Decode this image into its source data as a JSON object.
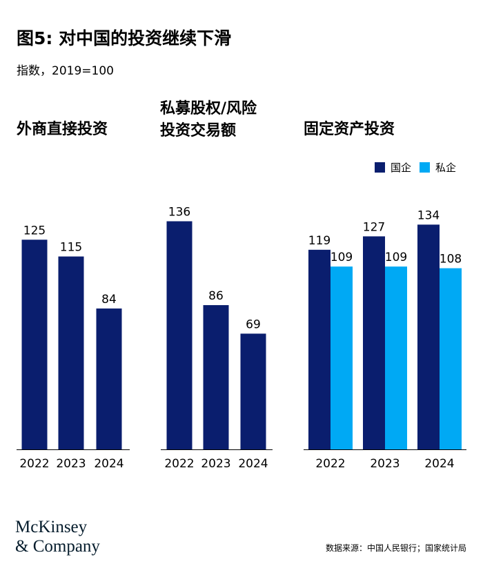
{
  "header": {
    "title": "图5: 对中国的投资继续下滑",
    "subtitle": "指数，2019=100"
  },
  "legend": {
    "items": [
      {
        "label": "国企",
        "color": "#0a1e6e"
      },
      {
        "label": "私企",
        "color": "#00a9f4"
      }
    ]
  },
  "footer": {
    "logo_line1": "McKinsey",
    "logo_line2": "& Company",
    "source": "数据来源：中国人民银行；国家统计局"
  },
  "chart_data": [
    {
      "type": "bar",
      "title_lines": [
        "外商直接投资"
      ],
      "categories": [
        "2022",
        "2023",
        "2024"
      ],
      "series": [
        {
          "values": [
            125,
            115,
            84
          ],
          "color": "#0a1e6e"
        }
      ]
    },
    {
      "type": "bar",
      "title_lines": [
        "私募股权/风险",
        "投资交易额"
      ],
      "categories": [
        "2022",
        "2023",
        "2024"
      ],
      "series": [
        {
          "values": [
            136,
            86,
            69
          ],
          "color": "#0a1e6e"
        }
      ]
    },
    {
      "type": "bar",
      "title_lines": [
        "固定资产投资"
      ],
      "categories": [
        "2022",
        "2023",
        "2024"
      ],
      "series": [
        {
          "name": "国企",
          "values": [
            119,
            127,
            134
          ],
          "color": "#0a1e6e"
        },
        {
          "name": "私企",
          "values": [
            109,
            109,
            108
          ],
          "color": "#00a9f4"
        }
      ]
    }
  ]
}
